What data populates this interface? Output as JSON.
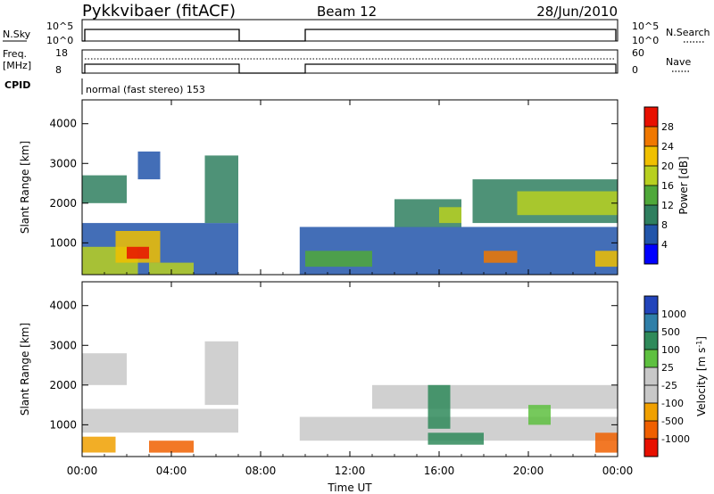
{
  "header": {
    "station": "Pykkvibaer (fitACF)",
    "beam": "Beam 12",
    "date": "28/Jun/2010"
  },
  "top_panels": {
    "nsky_label": "N.Sky",
    "nsearch_label": "N.Search",
    "nsky_ticks": [
      "10^5",
      "10^0"
    ],
    "freq_label_1": "Freq.",
    "freq_label_2": "[MHz]",
    "freq_ticks": [
      "18",
      "8"
    ],
    "nave_ticks": [
      "60",
      "0"
    ],
    "nave_label": "Nave",
    "cpid_label": "CPID",
    "cpid_text": "normal (fast stereo) 153"
  },
  "axes": {
    "xlabel": "Time UT",
    "ylabel": "Slant Range [km]",
    "x_ticks": [
      "00:00",
      "04:00",
      "08:00",
      "12:00",
      "16:00",
      "20:00",
      "00:00"
    ],
    "y_ticks": [
      "1000",
      "2000",
      "3000",
      "4000"
    ]
  },
  "colorbars": {
    "power": {
      "label": "Power [dB]",
      "ticks": [
        "4",
        "8",
        "12",
        "16",
        "20",
        "24",
        "28"
      ],
      "colors": [
        "#0000ff",
        "#2255aa",
        "#2f7f5f",
        "#4fa83a",
        "#b8d020",
        "#f0c000",
        "#f07800",
        "#e81000"
      ]
    },
    "velocity": {
      "label": "Velocity [m s",
      "label_sup": "-1",
      "label_end": "]",
      "ticks": [
        "1000",
        "500",
        "100",
        "25",
        "-25",
        "-100",
        "-500",
        "-1000"
      ],
      "colors": [
        "#2244bb",
        "#2f7fa8",
        "#2f8a5a",
        "#5ec040",
        "#c8c8c8",
        "#c8c8c8",
        "#f0a000",
        "#f06000",
        "#e81000"
      ]
    }
  },
  "chart_data": [
    {
      "type": "heatmap",
      "name": "power",
      "x_unit": "hours UT",
      "xlim": [
        0,
        24
      ],
      "ylim": [
        200,
        4600
      ],
      "x_ticks": [
        0,
        4,
        8,
        12,
        16,
        20,
        24
      ],
      "y_ticks": [
        1000,
        2000,
        3000,
        4000
      ],
      "data_gap_hours": [
        7.0,
        9.75
      ],
      "regions": [
        {
          "t": [
            0.0,
            7.0
          ],
          "r": [
            200,
            1500
          ],
          "level": 1
        },
        {
          "t": [
            0.0,
            2.5
          ],
          "r": [
            200,
            900
          ],
          "level": 4
        },
        {
          "t": [
            1.5,
            3.5
          ],
          "r": [
            500,
            1300
          ],
          "level": 5
        },
        {
          "t": [
            2.0,
            3.0
          ],
          "r": [
            600,
            900
          ],
          "level": 7
        },
        {
          "t": [
            0.0,
            2.0
          ],
          "r": [
            2000,
            2700
          ],
          "level": 2
        },
        {
          "t": [
            2.5,
            3.5
          ],
          "r": [
            2600,
            3300
          ],
          "level": 1
        },
        {
          "t": [
            5.5,
            7.0
          ],
          "r": [
            1500,
            3200
          ],
          "level": 2
        },
        {
          "t": [
            3.0,
            5.0
          ],
          "r": [
            200,
            500
          ],
          "level": 4
        },
        {
          "t": [
            9.75,
            24.0
          ],
          "r": [
            200,
            1400
          ],
          "level": 1
        },
        {
          "t": [
            10.0,
            13.0
          ],
          "r": [
            400,
            800
          ],
          "level": 3
        },
        {
          "t": [
            14.0,
            17.0
          ],
          "r": [
            1400,
            2100
          ],
          "level": 2
        },
        {
          "t": [
            16.0,
            17.0
          ],
          "r": [
            1500,
            1900
          ],
          "level": 4
        },
        {
          "t": [
            17.5,
            24.0
          ],
          "r": [
            1500,
            2600
          ],
          "level": 2
        },
        {
          "t": [
            19.5,
            24.0
          ],
          "r": [
            1700,
            2300
          ],
          "level": 4
        },
        {
          "t": [
            18.0,
            19.5
          ],
          "r": [
            500,
            800
          ],
          "level": 6
        },
        {
          "t": [
            23.0,
            24.0
          ],
          "r": [
            400,
            800
          ],
          "level": 5
        }
      ]
    },
    {
      "type": "heatmap",
      "name": "velocity",
      "x_unit": "hours UT",
      "xlim": [
        0,
        24
      ],
      "ylim": [
        200,
        4600
      ],
      "x_ticks": [
        0,
        4,
        8,
        12,
        16,
        20,
        24
      ],
      "y_ticks": [
        1000,
        2000,
        3000,
        4000
      ],
      "data_gap_hours": [
        7.0,
        9.75
      ],
      "regions": [
        {
          "t": [
            0.0,
            7.0
          ],
          "r": [
            800,
            1400
          ],
          "level": 4
        },
        {
          "t": [
            0.0,
            2.0
          ],
          "r": [
            2000,
            2800
          ],
          "level": 4
        },
        {
          "t": [
            0.0,
            1.5
          ],
          "r": [
            300,
            700
          ],
          "level": 6
        },
        {
          "t": [
            3.0,
            5.0
          ],
          "r": [
            300,
            600
          ],
          "level": 7
        },
        {
          "t": [
            5.5,
            7.0
          ],
          "r": [
            1500,
            3100
          ],
          "level": 4
        },
        {
          "t": [
            9.75,
            24.0
          ],
          "r": [
            600,
            1200
          ],
          "level": 4
        },
        {
          "t": [
            13.0,
            24.0
          ],
          "r": [
            1400,
            2000
          ],
          "level": 4
        },
        {
          "t": [
            15.5,
            16.5
          ],
          "r": [
            900,
            2000
          ],
          "level": 2
        },
        {
          "t": [
            15.5,
            18.0
          ],
          "r": [
            500,
            800
          ],
          "level": 2
        },
        {
          "t": [
            20.0,
            21.0
          ],
          "r": [
            1000,
            1500
          ],
          "level": 3
        },
        {
          "t": [
            23.0,
            24.0
          ],
          "r": [
            300,
            800
          ],
          "level": 7
        }
      ]
    }
  ]
}
